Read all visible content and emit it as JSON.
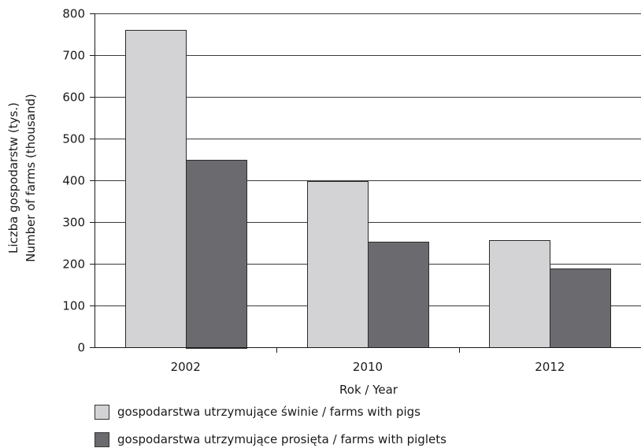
{
  "chart_data": {
    "type": "bar",
    "title": "",
    "xlabel": "Rok / Year",
    "ylabel_line1": "Liczba gospodarstw (tys.)",
    "ylabel_line2": "Number of farms (thousand)",
    "ylim": [
      0,
      800
    ],
    "yticks": [
      "0",
      "100",
      "200",
      "300",
      "400",
      "500",
      "600",
      "700",
      "800"
    ],
    "categories": [
      "2002",
      "2010",
      "2012"
    ],
    "grid": true,
    "legend_position": "bottom-left",
    "series": [
      {
        "name": "gospodarstwa utrzymujące świnie / farms with pigs",
        "values": [
          760,
          398,
          256
        ],
        "color": "#d3d3d5"
      },
      {
        "name": "gospodarstwa utrzymujące prosięta / farms with piglets",
        "values": [
          450,
          252,
          188
        ],
        "color": "#6b6b6f"
      }
    ]
  }
}
